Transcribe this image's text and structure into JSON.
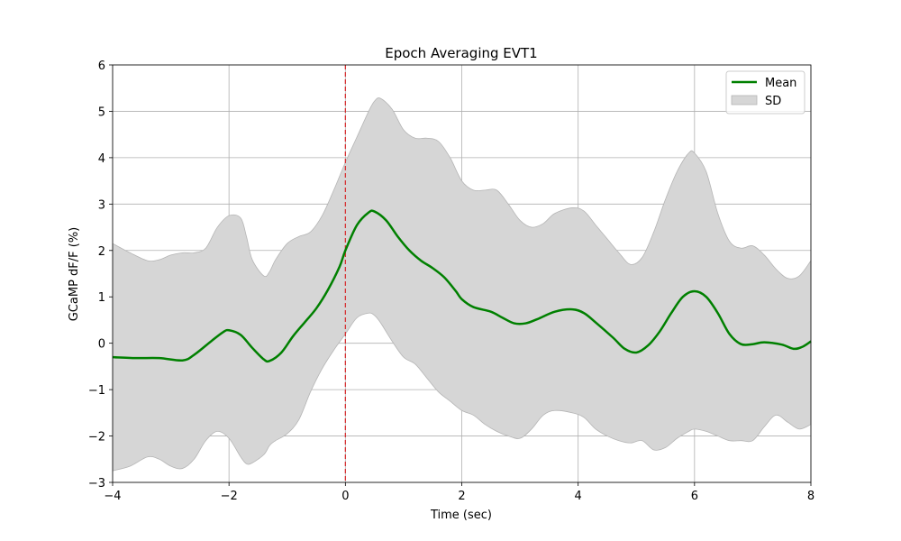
{
  "chart_data": {
    "type": "line",
    "title": "Epoch Averaging EVT1",
    "xlabel": "Time (sec)",
    "ylabel": "GCaMP dF/F (%)",
    "xlim": [
      -4,
      8
    ],
    "ylim": [
      -3,
      6
    ],
    "xticks": [
      -4,
      -2,
      0,
      2,
      4,
      6,
      8
    ],
    "yticks": [
      -3,
      -2,
      -1,
      0,
      1,
      2,
      3,
      4,
      5,
      6
    ],
    "xtick_labels": [
      "−4",
      "−2",
      "0",
      "2",
      "4",
      "6",
      "8"
    ],
    "ytick_labels": [
      "−3",
      "−2",
      "−1",
      "0",
      "1",
      "2",
      "3",
      "4",
      "5",
      "6"
    ],
    "grid": true,
    "legend_position": "top-right",
    "event_line": {
      "x": 0,
      "color": "#d62728",
      "style": "dashed"
    },
    "series": [
      {
        "name": "Mean",
        "kind": "line",
        "color": "#008000",
        "x": [
          -4.0,
          -3.6,
          -3.2,
          -2.8,
          -2.6,
          -2.3,
          -2.1,
          -2.0,
          -1.8,
          -1.6,
          -1.4,
          -1.3,
          -1.1,
          -0.9,
          -0.7,
          -0.5,
          -0.3,
          -0.1,
          0.0,
          0.2,
          0.4,
          0.5,
          0.7,
          0.9,
          1.1,
          1.3,
          1.5,
          1.7,
          1.9,
          2.0,
          2.2,
          2.5,
          2.7,
          2.9,
          3.1,
          3.3,
          3.6,
          3.9,
          4.1,
          4.3,
          4.6,
          4.8,
          5.0,
          5.2,
          5.4,
          5.6,
          5.8,
          6.0,
          6.2,
          6.4,
          6.6,
          6.8,
          7.0,
          7.2,
          7.5,
          7.7,
          7.85,
          8.0
        ],
        "y": [
          -0.3,
          -0.32,
          -0.32,
          -0.37,
          -0.25,
          0.05,
          0.24,
          0.28,
          0.18,
          -0.1,
          -0.35,
          -0.38,
          -0.2,
          0.15,
          0.45,
          0.75,
          1.15,
          1.65,
          2.0,
          2.55,
          2.82,
          2.84,
          2.65,
          2.3,
          2.0,
          1.78,
          1.62,
          1.42,
          1.12,
          0.95,
          0.78,
          0.68,
          0.55,
          0.43,
          0.43,
          0.52,
          0.68,
          0.73,
          0.65,
          0.45,
          0.12,
          -0.12,
          -0.2,
          -0.05,
          0.25,
          0.65,
          1.0,
          1.12,
          1.0,
          0.65,
          0.2,
          -0.02,
          -0.02,
          0.02,
          -0.03,
          -0.12,
          -0.08,
          0.04
        ]
      },
      {
        "name": "SD",
        "kind": "band",
        "color": "#d6d6d6",
        "edge_color": "#b5b5b5",
        "x": [
          -4.0,
          -3.7,
          -3.4,
          -3.2,
          -3.0,
          -2.8,
          -2.6,
          -2.4,
          -2.2,
          -2.0,
          -1.8,
          -1.7,
          -1.6,
          -1.4,
          -1.3,
          -1.2,
          -1.0,
          -0.8,
          -0.6,
          -0.4,
          -0.2,
          0.0,
          0.2,
          0.4,
          0.5,
          0.6,
          0.8,
          1.0,
          1.2,
          1.4,
          1.6,
          1.8,
          2.0,
          2.2,
          2.4,
          2.6,
          2.8,
          3.0,
          3.2,
          3.4,
          3.6,
          3.9,
          4.1,
          4.3,
          4.5,
          4.7,
          4.9,
          5.1,
          5.3,
          5.5,
          5.7,
          5.9,
          6.0,
          6.2,
          6.4,
          6.6,
          6.8,
          7.0,
          7.2,
          7.4,
          7.6,
          7.8,
          8.0
        ],
        "upper": [
          2.15,
          1.95,
          1.78,
          1.8,
          1.9,
          1.95,
          1.95,
          2.05,
          2.5,
          2.75,
          2.7,
          2.3,
          1.8,
          1.45,
          1.55,
          1.8,
          2.15,
          2.3,
          2.4,
          2.75,
          3.3,
          3.9,
          4.45,
          5.0,
          5.22,
          5.28,
          5.05,
          4.6,
          4.42,
          4.42,
          4.35,
          4.0,
          3.5,
          3.3,
          3.3,
          3.3,
          3.0,
          2.65,
          2.5,
          2.58,
          2.8,
          2.92,
          2.85,
          2.55,
          2.25,
          1.95,
          1.7,
          1.85,
          2.4,
          3.1,
          3.7,
          4.1,
          4.1,
          3.7,
          2.8,
          2.2,
          2.05,
          2.1,
          1.9,
          1.6,
          1.4,
          1.45,
          1.78
        ],
        "lower": [
          -2.75,
          -2.65,
          -2.45,
          -2.5,
          -2.65,
          -2.7,
          -2.5,
          -2.1,
          -1.9,
          -2.05,
          -2.45,
          -2.6,
          -2.58,
          -2.4,
          -2.2,
          -2.1,
          -1.95,
          -1.65,
          -1.05,
          -0.55,
          -0.15,
          0.2,
          0.55,
          0.65,
          0.6,
          0.45,
          0.05,
          -0.3,
          -0.45,
          -0.75,
          -1.05,
          -1.25,
          -1.45,
          -1.55,
          -1.75,
          -1.9,
          -2.0,
          -2.05,
          -1.85,
          -1.55,
          -1.45,
          -1.5,
          -1.6,
          -1.85,
          -2.0,
          -2.1,
          -2.15,
          -2.1,
          -2.3,
          -2.25,
          -2.05,
          -1.9,
          -1.85,
          -1.9,
          -2.0,
          -2.1,
          -2.1,
          -2.1,
          -1.8,
          -1.55,
          -1.7,
          -1.85,
          -1.75
        ]
      }
    ]
  }
}
